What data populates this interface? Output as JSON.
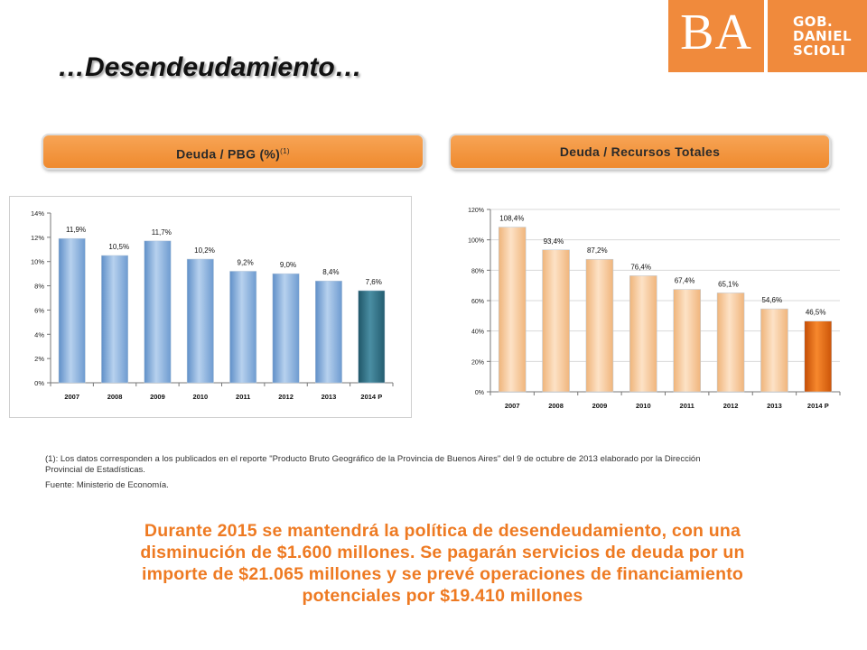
{
  "logo": {
    "ba": "BA",
    "gob_lines": [
      "GOB.",
      "DANIEL",
      "SCIOLI"
    ]
  },
  "title": "…Desendeudamiento…",
  "headers": {
    "left_main": "Deuda / PBG (%)",
    "left_sup": "(1)",
    "right": "Deuda / Recursos Totales"
  },
  "colors": {
    "orange": "#ef8a2e",
    "blue_bar": "#8ab4e0",
    "teal_bar": "#2f6f84",
    "peach_bar": "#f5c090",
    "dark_orange_bar": "#e0620a"
  },
  "chart_data": [
    {
      "type": "bar",
      "categories": [
        "2007",
        "2008",
        "2009",
        "2010",
        "2011",
        "2012",
        "2013",
        "2014 P"
      ],
      "values": [
        11.9,
        10.5,
        11.7,
        10.2,
        9.2,
        9.0,
        8.4,
        7.6
      ],
      "data_labels": [
        "11,9%",
        "10,5%",
        "11,7%",
        "10,2%",
        "9,2%",
        "9,0%",
        "8,4%",
        "7,6%"
      ],
      "yticks": [
        "0%",
        "2%",
        "4%",
        "6%",
        "8%",
        "10%",
        "12%",
        "14%"
      ],
      "ylim": [
        0,
        14
      ],
      "grid": false
    },
    {
      "type": "bar",
      "categories": [
        "2007",
        "2008",
        "2009",
        "2010",
        "2011",
        "2012",
        "2013",
        "2014 P"
      ],
      "values": [
        108.4,
        93.4,
        87.2,
        76.4,
        67.4,
        65.1,
        54.6,
        46.5
      ],
      "data_labels": [
        "108,4%",
        "93,4%",
        "87,2%",
        "76,4%",
        "67,4%",
        "65,1%",
        "54,6%",
        "46,5%"
      ],
      "yticks": [
        "0%",
        "20%",
        "40%",
        "60%",
        "80%",
        "100%",
        "120%"
      ],
      "ylim": [
        0,
        120
      ],
      "grid": true
    }
  ],
  "footnote": {
    "line1": "(1): Los datos corresponden a los publicados en el reporte \"Producto Bruto Geográfico de la Provincia de Buenos Aires\" del 9 de octubre de 2013 elaborado por la Dirección",
    "line2": "Provincial de Estadísticas.",
    "source": "Fuente: Ministerio de Economía."
  },
  "conclusion": [
    "Durante 2015 se mantendrá la política de desendeudamiento, con una",
    "disminución de $1.600 millones. Se pagarán servicios de deuda por un",
    "importe de $21.065 millones y se prevé operaciones de financiamiento",
    "potenciales por $19.410 millones"
  ]
}
